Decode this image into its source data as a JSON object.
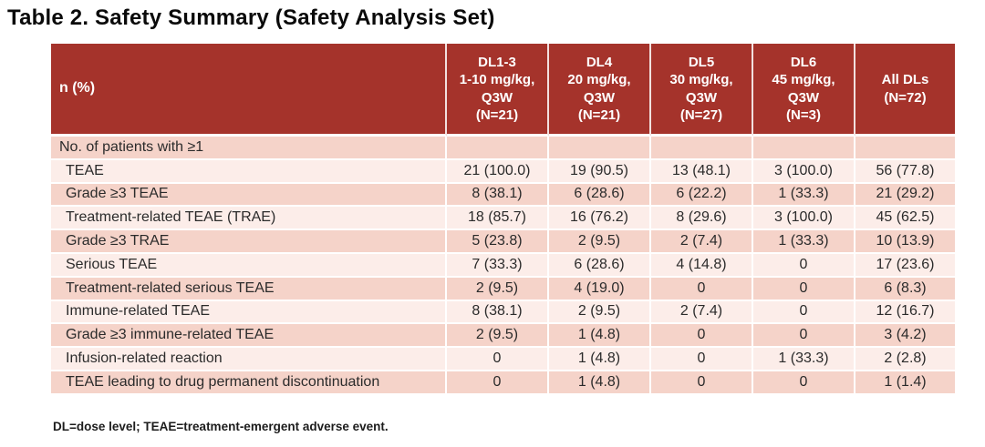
{
  "title": "Table 2. Safety Summary (Safety Analysis Set)",
  "footnote": "DL=dose level; TEAE=treatment-emergent adverse event.",
  "colors": {
    "header_bg": "#A5332B",
    "header_text": "#FFFFFF",
    "band_dark": "#F5D3C9",
    "band_light": "#FCEDE9",
    "body_text": "#2B2B2B"
  },
  "table": {
    "row_header_label": "n (%)",
    "columns": [
      "DL1-3\n1-10 mg/kg,\nQ3W\n(N=21)",
      "DL4\n20 mg/kg,\nQ3W\n(N=21)",
      "DL5\n30 mg/kg,\nQ3W\n(N=27)",
      "DL6\n45 mg/kg,\nQ3W\n(N=3)",
      "All DLs\n(N=72)"
    ],
    "rows": [
      {
        "label": "No. of patients with ≥1",
        "indent": false,
        "values": [
          "",
          "",
          "",
          "",
          ""
        ]
      },
      {
        "label": "TEAE",
        "indent": true,
        "values": [
          "21 (100.0)",
          "19 (90.5)",
          "13 (48.1)",
          "3 (100.0)",
          "56 (77.8)"
        ]
      },
      {
        "label": "Grade ≥3 TEAE",
        "indent": true,
        "values": [
          "8 (38.1)",
          "6 (28.6)",
          "6 (22.2)",
          "1 (33.3)",
          "21 (29.2)"
        ]
      },
      {
        "label": "Treatment-related TEAE (TRAE)",
        "indent": true,
        "values": [
          "18 (85.7)",
          "16 (76.2)",
          "8 (29.6)",
          "3 (100.0)",
          "45 (62.5)"
        ]
      },
      {
        "label": "Grade ≥3 TRAE",
        "indent": true,
        "values": [
          "5 (23.8)",
          "2 (9.5)",
          "2 (7.4)",
          "1 (33.3)",
          "10 (13.9)"
        ]
      },
      {
        "label": "Serious TEAE",
        "indent": true,
        "values": [
          "7 (33.3)",
          "6 (28.6)",
          "4 (14.8)",
          "0",
          "17 (23.6)"
        ]
      },
      {
        "label": "Treatment-related serious TEAE",
        "indent": true,
        "values": [
          "2 (9.5)",
          "4 (19.0)",
          "0",
          "0",
          "6 (8.3)"
        ]
      },
      {
        "label": "Immune-related TEAE",
        "indent": true,
        "values": [
          "8 (38.1)",
          "2 (9.5)",
          "2 (7.4)",
          "0",
          "12 (16.7)"
        ]
      },
      {
        "label": "Grade ≥3 immune-related TEAE",
        "indent": true,
        "values": [
          "2 (9.5)",
          "1 (4.8)",
          "0",
          "0",
          "3 (4.2)"
        ]
      },
      {
        "label": "Infusion-related reaction",
        "indent": true,
        "values": [
          "0",
          "1 (4.8)",
          "0",
          "1 (33.3)",
          "2 (2.8)"
        ]
      },
      {
        "label": "TEAE leading to drug permanent discontinuation",
        "indent": true,
        "values": [
          "0",
          "1 (4.8)",
          "0",
          "0",
          "1 (1.4)"
        ]
      }
    ]
  }
}
